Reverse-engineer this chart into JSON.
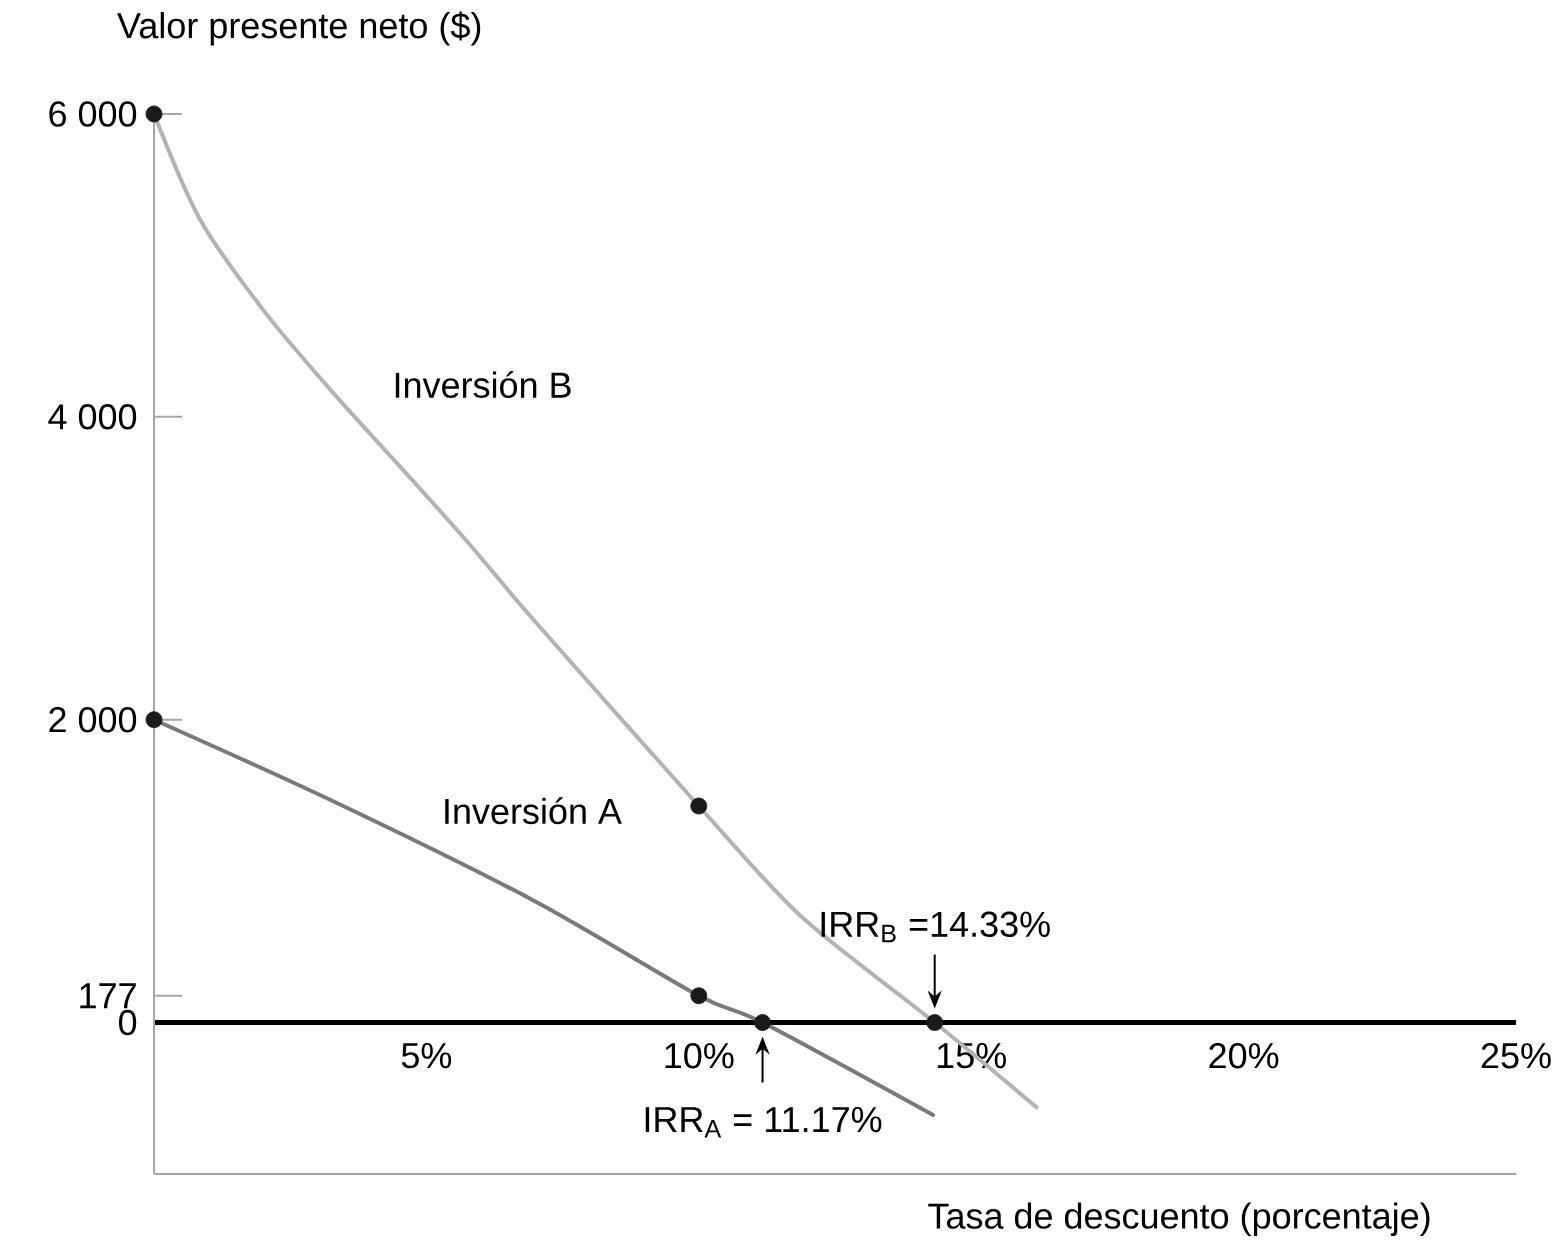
{
  "chart_data": {
    "type": "line",
    "xlabel": "Tasa de descuento (porcentaje)",
    "ylabel": "Valor presente neto ($)",
    "xlim": [
      0,
      25
    ],
    "ylim": [
      -1000,
      6000
    ],
    "xticks": [
      {
        "value": 5,
        "label": "5%"
      },
      {
        "value": 10,
        "label": "10%"
      },
      {
        "value": 15,
        "label": "15%"
      },
      {
        "value": 20,
        "label": "20%"
      },
      {
        "value": 25,
        "label": "25%"
      }
    ],
    "yticks": [
      0,
      {
        "value": 177,
        "label": "177"
      },
      {
        "value": 2000,
        "label": "2 000"
      },
      {
        "value": 4000,
        "label": "4 000"
      },
      {
        "value": 6000,
        "label": "6 000"
      }
    ],
    "series": [
      {
        "name": "Inversión A",
        "color": "#7a7a7a",
        "marker": "none",
        "x": [
          0,
          3.3,
          7,
          10,
          11.17,
          14.3
        ],
        "values": [
          2000,
          1460,
          800,
          177,
          0,
          -610
        ]
      },
      {
        "name": "Inversión B",
        "color": "#b3b3b3",
        "marker": "none",
        "x": [
          0,
          0.85,
          2.06,
          3.31,
          4.52,
          5.74,
          6.99,
          10,
          11.88,
          14.33,
          16.2
        ],
        "values": [
          6000,
          5300,
          4680,
          4150,
          3670,
          3180,
          2650,
          1430,
          700,
          0,
          -560
        ]
      },
      {
        "type": "scatter",
        "color": "#1a1a1a",
        "marker": "circle",
        "x": [
          0,
          10,
          11.17,
          0,
          10,
          14.33
        ],
        "values": [
          2000,
          177,
          0,
          6000,
          1430,
          0
        ]
      }
    ],
    "annotations": [
      {
        "text": "IRR$_{A}$ = 11.17%",
        "x": 11.17,
        "y": 0
      },
      {
        "text": "IRR$_{B}$ =14.33%",
        "x": 14.33,
        "y": 0
      }
    ]
  }
}
